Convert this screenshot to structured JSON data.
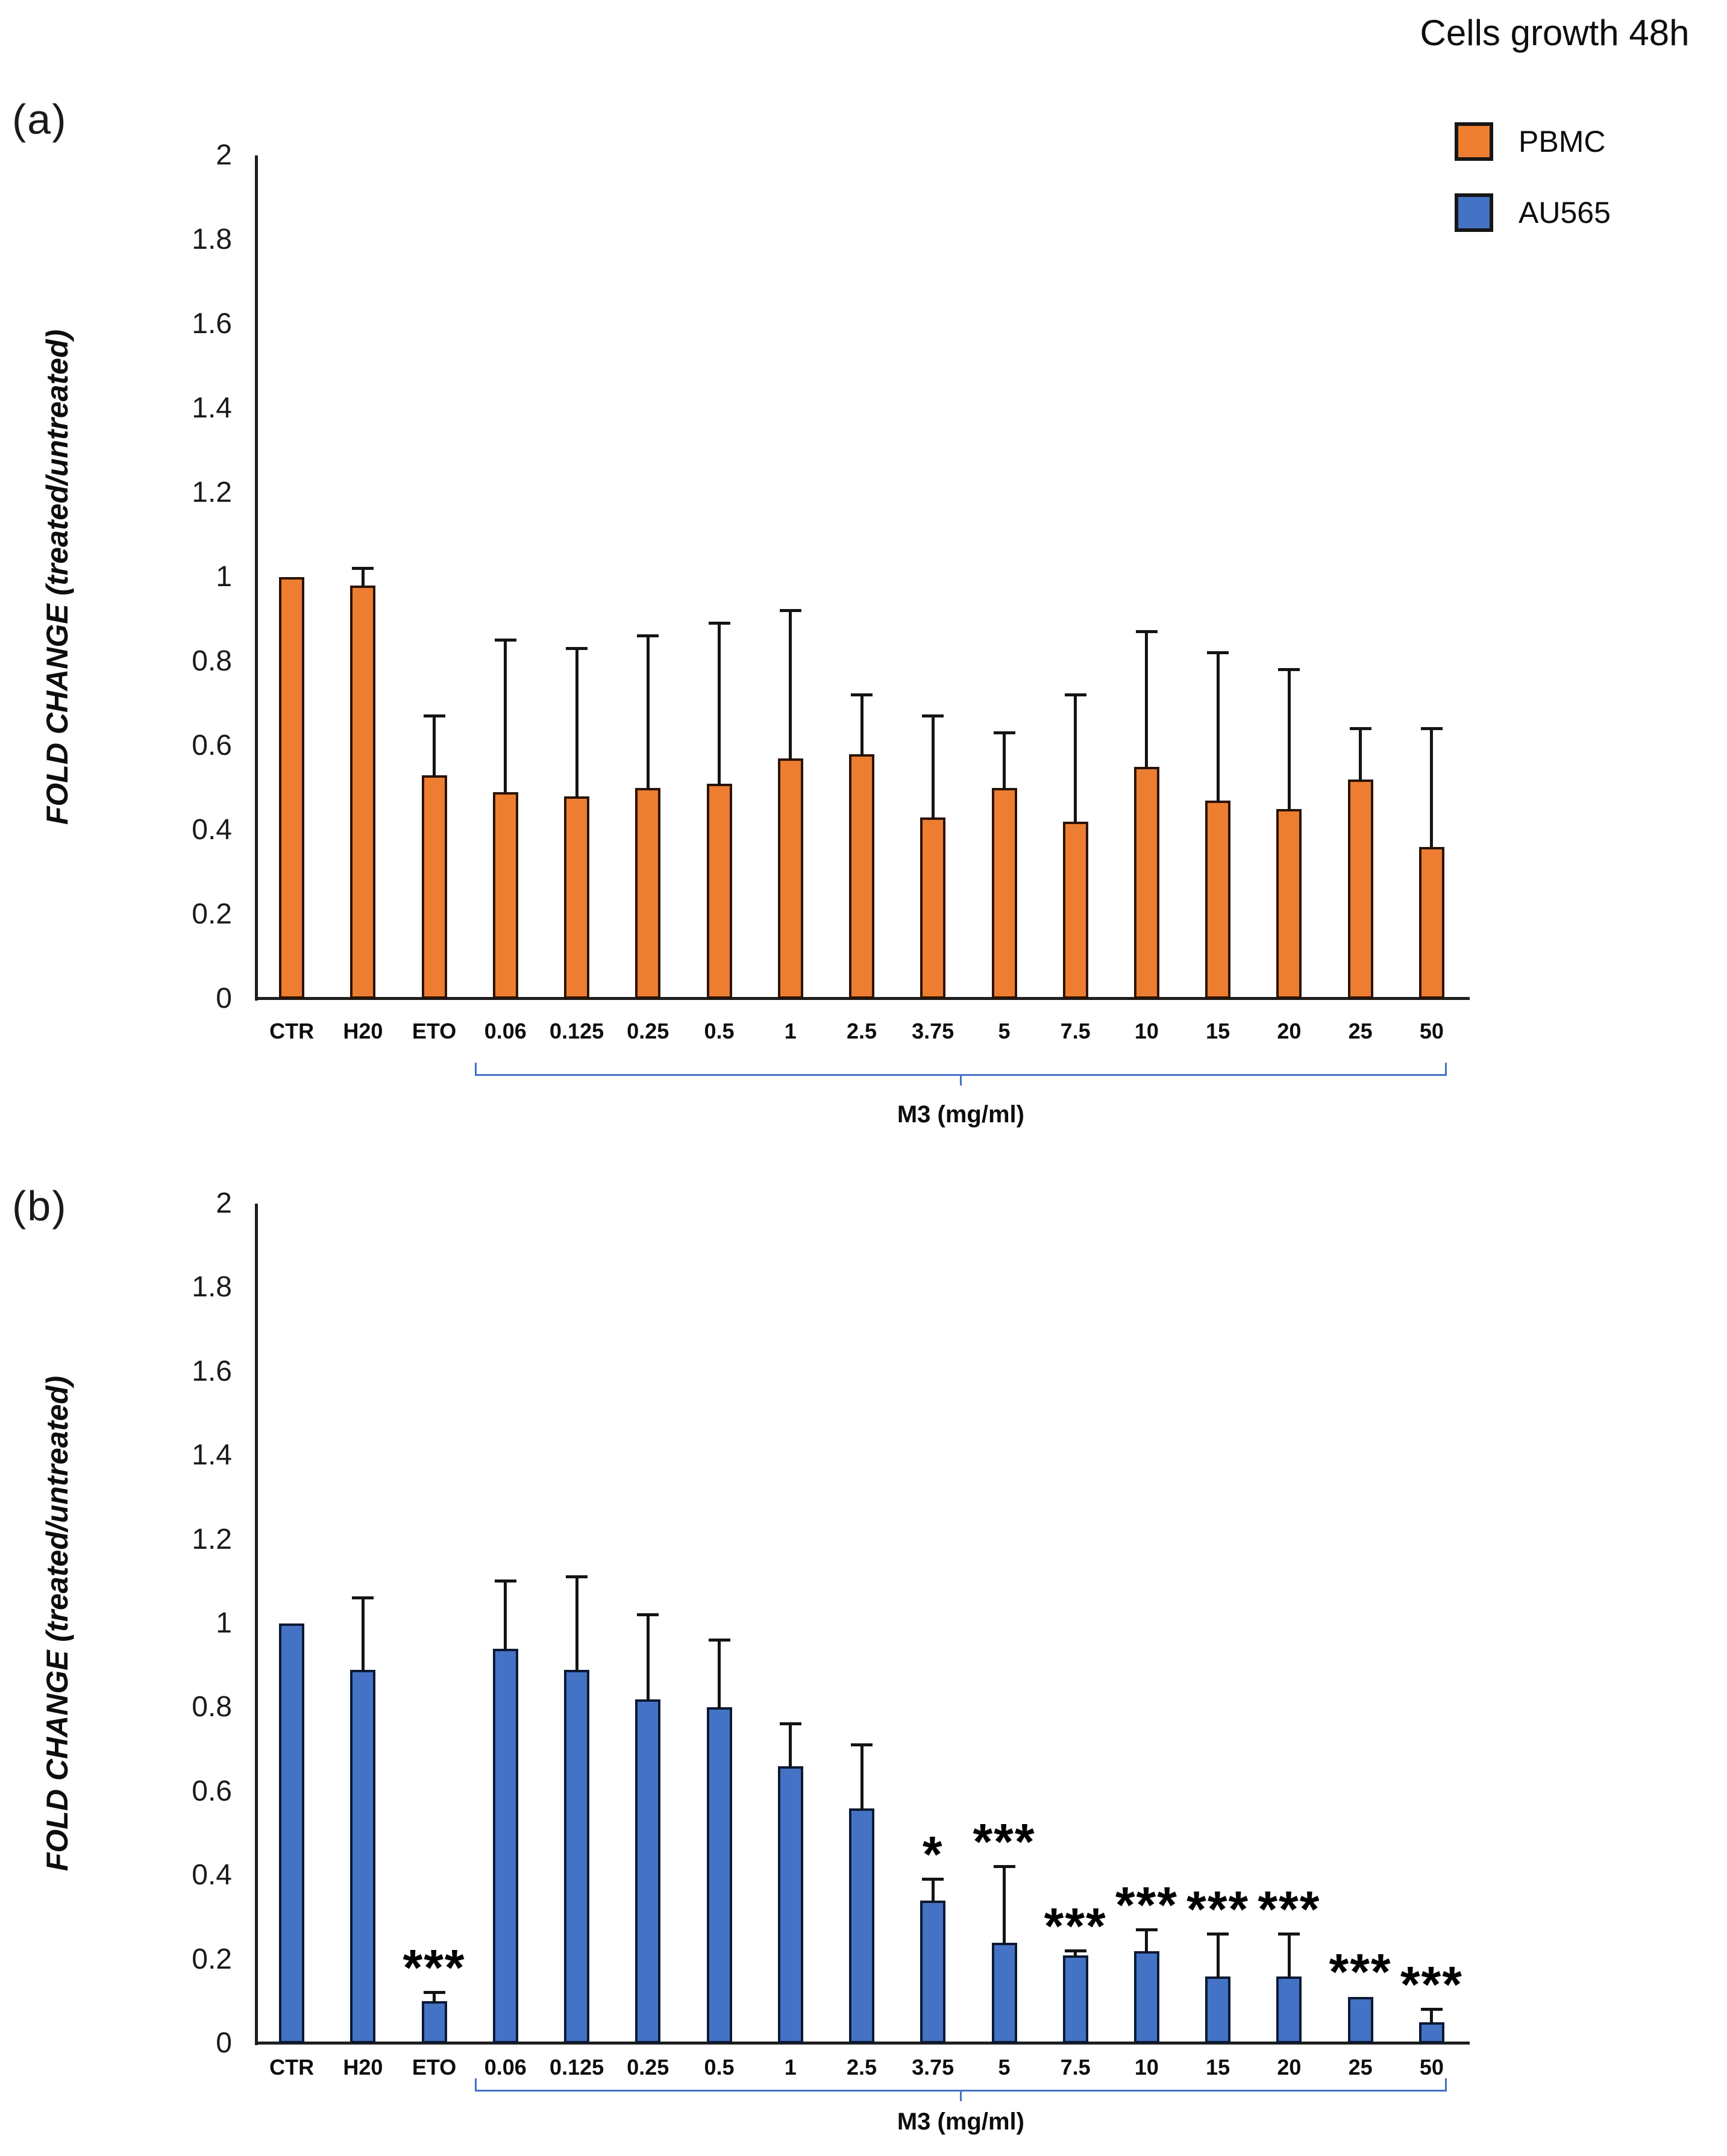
{
  "figure": {
    "panel_a_label": "(a)",
    "panel_b_label": "(b)",
    "y_axis_title": "FOLD CHANGE (treated/untreated)",
    "group_axis_label": "M3 (mg/ml)"
  },
  "legend": {
    "title": "Cells growth 48h",
    "items": [
      {
        "label": "PBMC",
        "color": "#ED7D31"
      },
      {
        "label": "AU565",
        "color": "#4472C4"
      }
    ]
  },
  "chart_data": [
    {
      "type": "bar",
      "panel": "a",
      "series_name": "PBMC",
      "bar_color": "#ED7D31",
      "bar_border": "#2b1405",
      "ylabel": "FOLD CHANGE (treated/untreated)",
      "ylim": [
        0,
        2
      ],
      "ytick_step": 0.2,
      "ytick_labels": [
        "2",
        "1.8",
        "1.6",
        "1.4",
        "1.2",
        "1",
        "0.8",
        "0.6",
        "0.4",
        "0.2",
        "0"
      ],
      "grid": false,
      "categories": [
        "CTR",
        "H20",
        "ETO",
        "0.06",
        "0.125",
        "0.25",
        "0.5",
        "1",
        "2.5",
        "3.75",
        "5",
        "7.5",
        "10",
        "15",
        "20",
        "25",
        "50"
      ],
      "values": [
        1.0,
        0.98,
        0.53,
        0.49,
        0.48,
        0.5,
        0.51,
        0.57,
        0.58,
        0.43,
        0.5,
        0.42,
        0.55,
        0.47,
        0.45,
        0.52,
        0.36
      ],
      "errors_upper": [
        0,
        0.04,
        0.14,
        0.36,
        0.35,
        0.36,
        0.38,
        0.35,
        0.14,
        0.24,
        0.13,
        0.3,
        0.32,
        0.35,
        0.33,
        0.12,
        0.28
      ],
      "significance": [
        "",
        "",
        "",
        "",
        "",
        "",
        "",
        "",
        "",
        "",
        "",
        "",
        "",
        "",
        "",
        "",
        ""
      ],
      "group_label": "M3 (mg/ml)",
      "group_span": [
        "0.06",
        "50"
      ]
    },
    {
      "type": "bar",
      "panel": "b",
      "series_name": "AU565",
      "bar_color": "#4472C4",
      "bar_border": "#0c1a33",
      "ylabel": "FOLD CHANGE (treated/untreated)",
      "ylim": [
        0,
        2
      ],
      "ytick_step": 0.2,
      "ytick_labels": [
        "2",
        "1.8",
        "1.6",
        "1.4",
        "1.2",
        "1",
        "0.8",
        "0.6",
        "0.4",
        "0.2",
        "0"
      ],
      "grid": false,
      "categories": [
        "CTR",
        "H20",
        "ETO",
        "0.06",
        "0.125",
        "0.25",
        "0.5",
        "1",
        "2.5",
        "3.75",
        "5",
        "7.5",
        "10",
        "15",
        "20",
        "25",
        "50"
      ],
      "values": [
        1.0,
        0.89,
        0.1,
        0.94,
        0.89,
        0.82,
        0.8,
        0.66,
        0.56,
        0.34,
        0.24,
        0.21,
        0.22,
        0.16,
        0.16,
        0.11,
        0.05
      ],
      "errors_upper": [
        0,
        0.17,
        0.02,
        0.16,
        0.22,
        0.2,
        0.16,
        0.1,
        0.15,
        0.05,
        0.18,
        0.01,
        0.05,
        0.1,
        0.1,
        0,
        0.03
      ],
      "significance": [
        "",
        "",
        "***",
        "",
        "",
        "",
        "",
        "",
        "",
        "*",
        "***",
        "***",
        "***",
        "***",
        "***",
        "***",
        "***"
      ],
      "group_label": "M3 (mg/ml)",
      "group_span": [
        "0.06",
        "50"
      ]
    }
  ]
}
